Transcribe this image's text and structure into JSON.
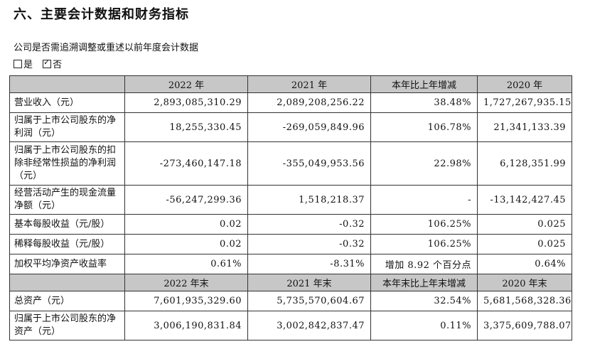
{
  "title": "六、主要会计数据和财务指标",
  "question": "公司是否需追溯调整或重述以前年度会计数据",
  "options": {
    "yes": "是",
    "no": "否"
  },
  "header1": [
    "",
    "2022 年",
    "2021 年",
    "本年比上年增减",
    "2020 年"
  ],
  "header2": [
    "",
    "2022 年末",
    "2021 年末",
    "本年末比上年末增减",
    "2020 年末"
  ],
  "rows1": [
    {
      "label": "营业收入（元）",
      "v": [
        "2,893,085,310.29",
        "2,089,208,256.22",
        "38.48%",
        "1,727,267,935.15"
      ]
    },
    {
      "label": "归属于上市公司股东的净利润（元）",
      "v": [
        "18,255,330.45",
        "-269,059,849.96",
        "106.78%",
        "21,341,133.39"
      ]
    },
    {
      "label": "归属于上市公司股东的扣除非经常性损益的净利润（元）",
      "v": [
        "-273,460,147.18",
        "-355,049,953.56",
        "22.98%",
        "6,128,351.99"
      ]
    },
    {
      "label": "经营活动产生的现金流量净额（元）",
      "v": [
        "-56,247,299.36",
        "1,518,218.37",
        "-",
        "-13,142,427.45"
      ]
    },
    {
      "label": "基本每股收益（元/股）",
      "v": [
        "0.02",
        "-0.32",
        "106.25%",
        "0.025"
      ]
    },
    {
      "label": "稀释每股收益（元/股）",
      "v": [
        "0.02",
        "-0.32",
        "106.25%",
        "0.025"
      ]
    },
    {
      "label": "加权平均净资产收益率",
      "v": [
        "0.61%",
        "-8.31%",
        "增加 8.92 个百分点",
        "0.64%"
      ]
    }
  ],
  "rows2": [
    {
      "label": "总资产（元）",
      "v": [
        "7,601,935,329.60",
        "5,735,570,604.67",
        "32.54%",
        "5,681,568,328.36"
      ]
    },
    {
      "label": "归属于上市公司股东的净资产（元）",
      "v": [
        "3,006,190,831.84",
        "3,002,842,837.47",
        "0.11%",
        "3,375,609,788.07"
      ]
    }
  ]
}
